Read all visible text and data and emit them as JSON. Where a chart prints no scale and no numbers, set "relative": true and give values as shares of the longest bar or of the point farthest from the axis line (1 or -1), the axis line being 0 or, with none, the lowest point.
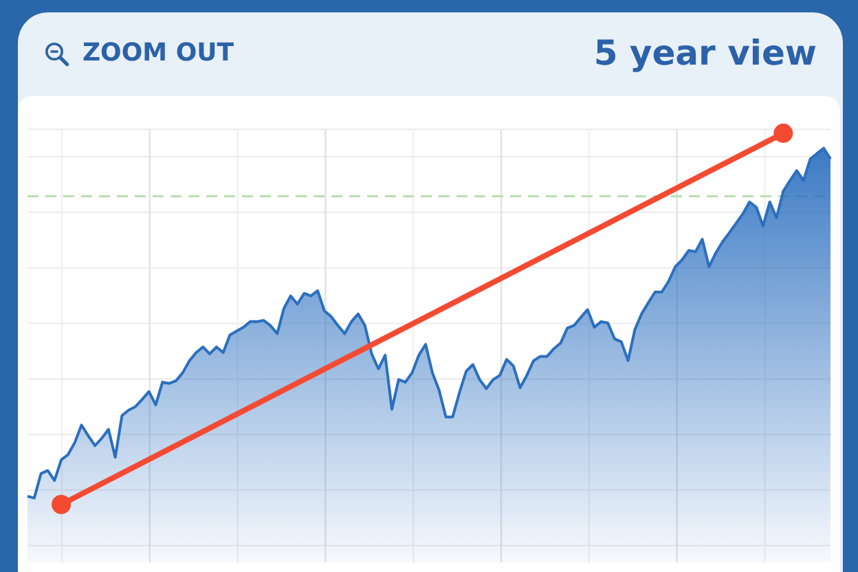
{
  "chart_data": {
    "type": "area",
    "title": "5 year view",
    "annotations": [
      "ZOOM OUT"
    ],
    "relative": true,
    "grid": true,
    "categories": [
      null,
      null,
      null,
      null,
      null,
      null,
      null,
      null,
      null,
      null,
      null,
      null,
      null,
      null,
      null,
      null,
      null,
      null,
      null,
      null,
      null,
      null,
      null,
      null,
      null,
      null,
      null,
      null,
      null,
      null,
      null,
      null,
      null,
      null,
      null,
      null,
      null,
      null,
      null,
      null,
      null,
      null,
      null,
      null,
      null,
      null,
      null,
      null,
      null,
      null,
      null,
      null,
      null,
      null,
      null,
      null,
      null,
      null,
      null,
      null,
      null,
      null,
      null,
      null,
      null,
      null,
      null,
      null,
      null,
      null,
      null,
      null,
      null,
      null,
      null,
      null,
      null,
      null,
      null,
      null,
      null,
      null,
      null,
      null,
      null,
      null,
      null,
      null,
      null,
      null,
      null,
      null,
      null,
      null,
      null,
      null,
      null,
      null,
      null,
      null,
      null,
      null,
      null,
      null,
      null,
      null,
      null,
      null,
      null,
      null,
      null,
      null,
      null,
      null,
      null,
      null,
      null,
      null,
      null,
      null
    ],
    "series": [
      {
        "type": "area",
        "color": "#2b6fbf",
        "values": [
          0.154,
          0.15,
          0.207,
          0.214,
          0.191,
          0.239,
          0.251,
          0.279,
          0.32,
          0.295,
          0.272,
          0.289,
          0.31,
          0.245,
          0.342,
          0.355,
          0.363,
          0.38,
          0.398,
          0.367,
          0.42,
          0.417,
          0.423,
          0.442,
          0.47,
          0.489,
          0.502,
          0.486,
          0.502,
          0.489,
          0.53,
          0.539,
          0.548,
          0.561,
          0.561,
          0.564,
          0.552,
          0.533,
          0.592,
          0.621,
          0.602,
          0.627,
          0.621,
          0.633,
          0.586,
          0.573,
          0.552,
          0.533,
          0.561,
          0.579,
          0.552,
          0.486,
          0.451,
          0.483,
          0.357,
          0.426,
          0.42,
          0.442,
          0.483,
          0.508,
          0.442,
          0.401,
          0.339,
          0.339,
          0.395,
          0.445,
          0.461,
          0.426,
          0.405,
          0.426,
          0.436,
          0.473,
          0.458,
          0.407,
          0.436,
          0.47,
          0.48,
          0.48,
          0.498,
          0.511,
          0.546,
          0.552,
          0.571,
          0.589,
          0.548,
          0.561,
          0.558,
          0.521,
          0.514,
          0.47,
          0.542,
          0.579,
          0.605,
          0.63,
          0.63,
          0.655,
          0.689,
          0.705,
          0.727,
          0.724,
          0.753,
          0.689,
          0.721,
          0.747,
          0.768,
          0.79,
          0.812,
          0.84,
          0.828,
          0.784,
          0.84,
          0.803,
          0.865,
          0.89,
          0.913,
          0.89,
          0.94,
          0.953,
          0.965,
          0.94
        ]
      },
      {
        "type": "line",
        "color": "#f44a32",
        "marker": "circle",
        "values": [
          null,
          null,
          null,
          null,
          null,
          0.135,
          null,
          null,
          null,
          null,
          null,
          null,
          null,
          null,
          null,
          null,
          null,
          null,
          null,
          null,
          null,
          null,
          null,
          null,
          null,
          null,
          null,
          null,
          null,
          null,
          null,
          null,
          null,
          null,
          null,
          null,
          null,
          null,
          null,
          null,
          null,
          null,
          null,
          null,
          null,
          null,
          null,
          null,
          null,
          null,
          null,
          null,
          null,
          null,
          null,
          null,
          null,
          null,
          null,
          null,
          null,
          null,
          null,
          null,
          null,
          null,
          null,
          null,
          null,
          null,
          null,
          null,
          null,
          null,
          null,
          null,
          null,
          null,
          null,
          null,
          null,
          null,
          null,
          null,
          null,
          null,
          null,
          null,
          null,
          null,
          null,
          null,
          null,
          null,
          null,
          null,
          null,
          null,
          null,
          null,
          null,
          null,
          null,
          null,
          null,
          null,
          null,
          null,
          null,
          null,
          null,
          null,
          1,
          null,
          null,
          null,
          null,
          null,
          null,
          null
        ]
      }
    ],
    "ref_lines": [
      {
        "axis": "y",
        "value": 0.853,
        "color": "#b9dfb0",
        "line_style": "dashed"
      }
    ]
  }
}
